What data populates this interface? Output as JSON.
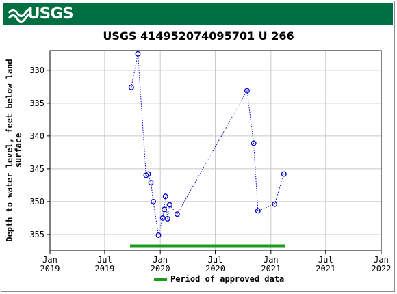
{
  "banner": {
    "logo_text": "USGS",
    "color": "#006f41"
  },
  "chart_data": {
    "type": "scatter",
    "title": "USGS 414952074095701 U 266",
    "ylabel": "Depth to water level, feet below land surface",
    "ylabel_lines": [
      "Depth to water level, feet below land",
      "surface"
    ],
    "y_inverted": true,
    "ylim": [
      327.0,
      357.4
    ],
    "y_ticks": [
      330,
      335,
      340,
      345,
      350,
      355
    ],
    "xlim": [
      "2019-01-01",
      "2022-01-01"
    ],
    "x_ticks": [
      {
        "date": "2019-01-01",
        "label": [
          "Jan",
          "2019"
        ]
      },
      {
        "date": "2019-07-01",
        "label": [
          "Jul",
          "2019"
        ]
      },
      {
        "date": "2020-01-01",
        "label": [
          "Jan",
          "2020"
        ]
      },
      {
        "date": "2020-07-01",
        "label": [
          "Jul",
          "2020"
        ]
      },
      {
        "date": "2021-01-01",
        "label": [
          "Jan",
          "2021"
        ]
      },
      {
        "date": "2021-07-01",
        "label": [
          "Jul",
          "2021"
        ]
      },
      {
        "date": "2022-01-01",
        "label": [
          "Jan",
          "2022"
        ]
      }
    ],
    "grid": true,
    "series": [
      {
        "color": "#0000cc",
        "points": [
          {
            "x": "2019-09-27",
            "y": 332.6
          },
          {
            "x": "2019-10-19",
            "y": 327.5
          },
          {
            "x": "2019-11-15",
            "y": 346.0
          },
          {
            "x": "2019-11-22",
            "y": 345.8
          },
          {
            "x": "2019-12-01",
            "y": 347.1
          },
          {
            "x": "2019-12-09",
            "y": 350.0
          },
          {
            "x": "2019-12-26",
            "y": 355.1
          },
          {
            "x": "2020-01-09",
            "y": 352.5
          },
          {
            "x": "2020-01-14",
            "y": 351.2
          },
          {
            "x": "2020-01-18",
            "y": 349.2
          },
          {
            "x": "2020-01-25",
            "y": 352.6
          },
          {
            "x": "2020-02-01",
            "y": 350.5
          },
          {
            "x": "2020-02-26",
            "y": 351.9
          },
          {
            "x": "2020-10-14",
            "y": 333.1
          },
          {
            "x": "2020-11-05",
            "y": 341.1
          },
          {
            "x": "2020-11-19",
            "y": 351.4
          },
          {
            "x": "2021-01-13",
            "y": 350.4
          },
          {
            "x": "2021-02-13",
            "y": 345.8
          }
        ]
      }
    ],
    "approved_period": {
      "start": "2019-09-23",
      "end": "2021-02-16",
      "color": "#1a9e1a"
    },
    "legend": {
      "label": "Period of approved data",
      "placement": "bottom-center"
    }
  }
}
